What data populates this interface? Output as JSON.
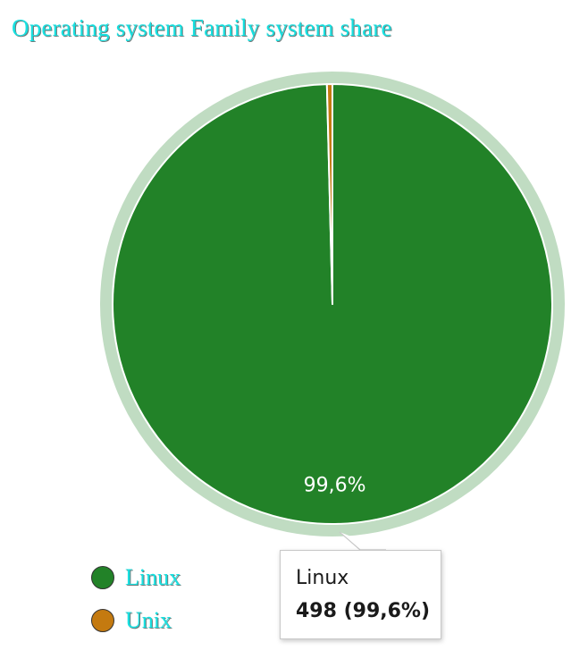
{
  "title": "Operating system Family system share",
  "chart_data": {
    "type": "pie",
    "title": "Operating system Family system share",
    "series": [
      {
        "name": "Linux",
        "value": 498,
        "percent_label": "99,6%",
        "color": "#228228"
      },
      {
        "name": "Unix",
        "value": 2,
        "color": "#c47a10"
      }
    ],
    "legend_placement": "bottom-left",
    "highlighted": "Linux",
    "halo_color": "#c0dcc2"
  },
  "tooltip": {
    "series_name": "Linux",
    "value_text": "498 (99,6%)"
  }
}
